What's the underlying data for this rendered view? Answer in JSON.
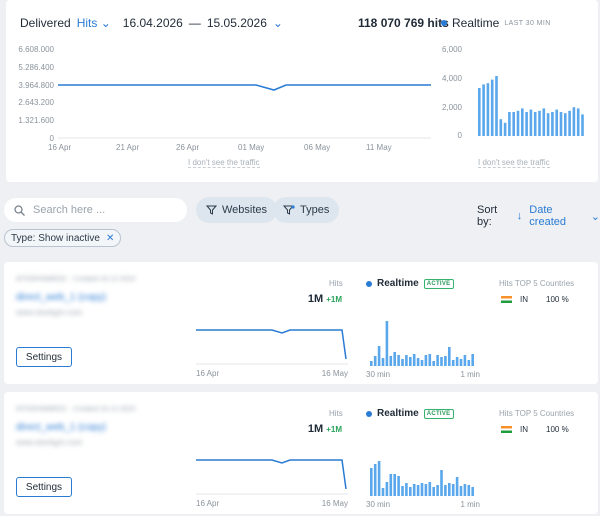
{
  "header": {
    "delivered_label": "Delivered",
    "metric_select": "Hits",
    "date_from": "16.04.2026",
    "date_sep": "—",
    "date_to": "15.05.2026",
    "total_hits": "118 070 769 hits",
    "realtime_label": "Realtime",
    "realtime_window": "LAST 30 MIN",
    "no_traffic_link": "I don't see the traffic"
  },
  "main_chart": {
    "y_ticks": [
      "6.608.000",
      "5.286.400",
      "3.964.800",
      "2.643.200",
      "1.321.600",
      "0"
    ],
    "x_ticks": [
      "16 Apr",
      "21 Apr",
      "26 Apr",
      "01 May",
      "06 May",
      "11 May"
    ]
  },
  "realtime_chart": {
    "y_ticks": [
      "6,000",
      "4,000",
      "2,000",
      "0"
    ]
  },
  "filters": {
    "search_placeholder": "Search here ...",
    "websites_label": "Websites",
    "types_label": "Types",
    "sort_label": "Sort by:",
    "sort_value": "Date created",
    "chip_label": "Type: Show inactive"
  },
  "sites": [
    {
      "meta": "#ITGRHW8RDC · Created 24.12.2024",
      "name": "direct_web_1 (copy)",
      "url": "www.stockgm.com",
      "settings_label": "Settings",
      "hits_label": "Hits",
      "hits_value": "1M",
      "hits_delta": "+1M",
      "realtime_label": "Realtime",
      "status": "ACTIVE",
      "countries_label": "Hits TOP 5 Countries",
      "country_code": "IN",
      "country_pct": "100 %",
      "x_start": "16 Apr",
      "x_end": "16 May",
      "rt_start": "30 min",
      "rt_end": "1 min"
    },
    {
      "meta": "#ITGRHW8RDC · Created 24.12.2024",
      "name": "direct_web_1 (copy)",
      "url": "www.stockgm.com",
      "settings_label": "Settings",
      "hits_label": "Hits",
      "hits_value": "1M",
      "hits_delta": "+1M",
      "realtime_label": "Realtime",
      "status": "ACTIVE",
      "countries_label": "Hits TOP 5 Countries",
      "country_code": "IN",
      "country_pct": "100 %",
      "x_start": "16 Apr",
      "x_end": "16 May",
      "rt_start": "30 min",
      "rt_end": "1 min"
    }
  ],
  "colors": {
    "accent": "#2a7bd4",
    "bar": "#5aa7ec",
    "active": "#37b26c"
  }
}
